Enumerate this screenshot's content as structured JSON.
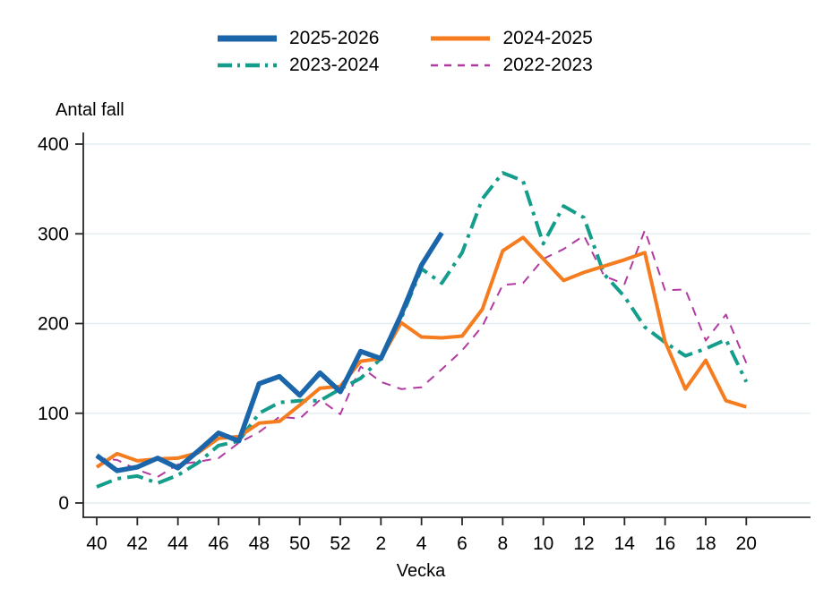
{
  "chart_data": {
    "type": "line",
    "title": "",
    "ylabel": "Antal fall",
    "xlabel": "Vecka",
    "ylim": [
      0,
      400
    ],
    "y_ticks": [
      0,
      100,
      200,
      300,
      400
    ],
    "grid": true,
    "legend_position": "top-center",
    "categories": [
      40,
      41,
      42,
      43,
      44,
      45,
      46,
      47,
      48,
      49,
      50,
      51,
      52,
      1,
      2,
      3,
      4,
      5,
      6,
      7,
      8,
      9,
      10,
      11,
      12,
      13,
      14,
      15,
      16,
      17,
      18,
      19,
      20
    ],
    "x_tick_labels": [
      "40",
      "42",
      "44",
      "46",
      "48",
      "50",
      "52",
      "2",
      "4",
      "6",
      "8",
      "10",
      "12",
      "14",
      "16",
      "18",
      "20"
    ],
    "axis_color": "#262626",
    "grid_color": "#e4edf0",
    "series": [
      {
        "name": "2025-2026",
        "color": "#1b66ab",
        "style": "solid",
        "width": 5.5,
        "values": [
          53,
          36,
          40,
          50,
          39,
          58,
          78,
          69,
          133,
          141,
          120,
          145,
          124,
          169,
          161,
          210,
          265,
          301
        ]
      },
      {
        "name": "2024-2025",
        "color": "#f57c1f",
        "style": "solid",
        "width": 4,
        "values": [
          40,
          55,
          47,
          49,
          50,
          56,
          72,
          74,
          89,
          91,
          109,
          128,
          130,
          158,
          161,
          201,
          185,
          184,
          186,
          216,
          281,
          296,
          272,
          248,
          257,
          264,
          271,
          279,
          180,
          127,
          159,
          114,
          107
        ]
      },
      {
        "name": "2023-2024",
        "color": "#159d8b",
        "style": "dash-dot",
        "width": 4,
        "values": [
          18,
          27,
          30,
          22,
          31,
          45,
          64,
          69,
          100,
          112,
          114,
          114,
          127,
          139,
          161,
          206,
          261,
          245,
          279,
          339,
          368,
          359,
          289,
          331,
          318,
          255,
          230,
          196,
          179,
          164,
          172,
          182,
          135
        ]
      },
      {
        "name": "2022-2023",
        "color": "#b13aa1",
        "style": "dashed",
        "width": 2,
        "values": [
          50,
          48,
          37,
          29,
          43,
          46,
          50,
          67,
          79,
          96,
          94,
          115,
          99,
          152,
          135,
          127,
          129,
          149,
          170,
          197,
          243,
          245,
          272,
          283,
          298,
          253,
          244,
          304,
          237,
          238,
          181,
          210,
          156
        ]
      }
    ]
  }
}
